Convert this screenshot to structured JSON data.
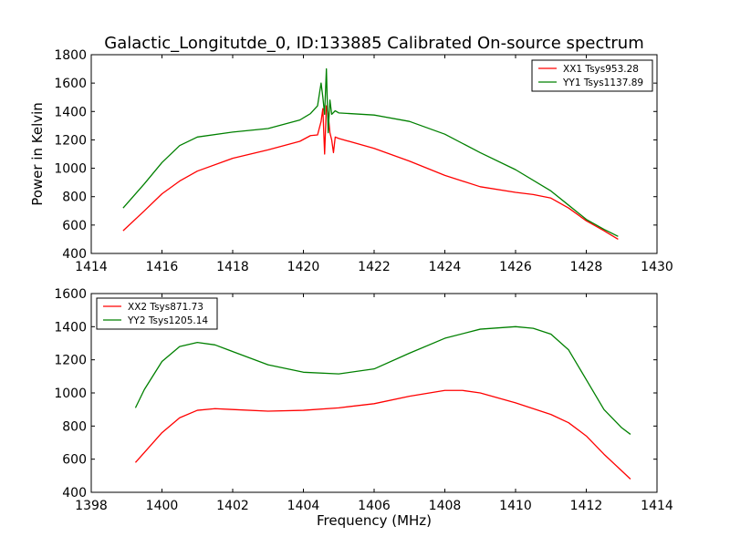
{
  "title": "Galactic_Longitutde_0, ID:133885 Calibrated On-source spectrum",
  "chart_data": [
    {
      "type": "line",
      "ylabel": "Power in Kelvin",
      "xlabel": "",
      "xlim": [
        1414,
        1430
      ],
      "ylim": [
        400,
        1800
      ],
      "xticks": [
        1414,
        1416,
        1418,
        1420,
        1422,
        1424,
        1426,
        1428,
        1430
      ],
      "yticks": [
        400,
        600,
        800,
        1000,
        1200,
        1400,
        1600,
        1800
      ],
      "legend_position": "upper right",
      "series": [
        {
          "name": "XX1 Tsys953.28",
          "color": "#ff0000",
          "x": [
            1414.9,
            1415.5,
            1416.0,
            1416.5,
            1417.0,
            1418.0,
            1419.0,
            1419.9,
            1420.2,
            1420.4,
            1420.5,
            1420.55,
            1420.6,
            1420.65,
            1420.7,
            1420.75,
            1420.8,
            1420.85,
            1420.9,
            1421.0,
            1422.0,
            1423.0,
            1424.0,
            1425.0,
            1426.0,
            1426.5,
            1427.0,
            1427.5,
            1428.0,
            1428.5,
            1428.9
          ],
          "y": [
            560,
            700,
            820,
            910,
            980,
            1070,
            1130,
            1190,
            1230,
            1235,
            1330,
            1420,
            1100,
            1440,
            1380,
            1250,
            1200,
            1110,
            1220,
            1210,
            1140,
            1050,
            950,
            870,
            830,
            815,
            790,
            720,
            630,
            560,
            500
          ]
        },
        {
          "name": "YY1 Tsys1137.89",
          "color": "#008000",
          "x": [
            1414.9,
            1415.5,
            1416.0,
            1416.5,
            1417.0,
            1418.0,
            1419.0,
            1419.9,
            1420.2,
            1420.4,
            1420.5,
            1420.55,
            1420.6,
            1420.65,
            1420.7,
            1420.75,
            1420.8,
            1420.9,
            1421.0,
            1422.0,
            1423.0,
            1424.0,
            1425.0,
            1426.0,
            1427.0,
            1427.5,
            1428.0,
            1428.5,
            1428.9
          ],
          "y": [
            720,
            890,
            1040,
            1160,
            1220,
            1255,
            1280,
            1340,
            1385,
            1440,
            1600,
            1500,
            1380,
            1700,
            1250,
            1480,
            1380,
            1405,
            1390,
            1375,
            1330,
            1240,
            1110,
            990,
            840,
            740,
            640,
            570,
            520
          ]
        }
      ]
    },
    {
      "type": "line",
      "ylabel": "",
      "xlabel": "Frequency (MHz)",
      "xlim": [
        1398,
        1414
      ],
      "ylim": [
        400,
        1600
      ],
      "xticks": [
        1398,
        1400,
        1402,
        1404,
        1406,
        1408,
        1410,
        1412,
        1414
      ],
      "yticks": [
        400,
        600,
        800,
        1000,
        1200,
        1400,
        1600
      ],
      "legend_position": "upper left",
      "series": [
        {
          "name": "XX2 Tsys871.73",
          "color": "#ff0000",
          "x": [
            1399.25,
            1399.5,
            1400.0,
            1400.5,
            1401.0,
            1401.5,
            1402.0,
            1403.0,
            1404.0,
            1405.0,
            1406.0,
            1407.0,
            1408.0,
            1408.5,
            1409.0,
            1410.0,
            1411.0,
            1411.5,
            1412.0,
            1412.5,
            1413.0,
            1413.25
          ],
          "y": [
            580,
            640,
            760,
            850,
            895,
            905,
            900,
            890,
            895,
            910,
            935,
            980,
            1015,
            1015,
            1000,
            940,
            870,
            820,
            740,
            630,
            530,
            480
          ]
        },
        {
          "name": "YY2 Tsys1205.14",
          "color": "#008000",
          "x": [
            1399.25,
            1399.5,
            1400.0,
            1400.5,
            1401.0,
            1401.5,
            1402.0,
            1403.0,
            1404.0,
            1405.0,
            1406.0,
            1407.0,
            1408.0,
            1409.0,
            1410.0,
            1410.5,
            1411.0,
            1411.5,
            1412.0,
            1412.5,
            1413.0,
            1413.25
          ],
          "y": [
            910,
            1020,
            1190,
            1280,
            1305,
            1290,
            1250,
            1170,
            1125,
            1115,
            1145,
            1240,
            1330,
            1385,
            1400,
            1390,
            1355,
            1260,
            1080,
            900,
            790,
            750
          ]
        }
      ]
    }
  ]
}
